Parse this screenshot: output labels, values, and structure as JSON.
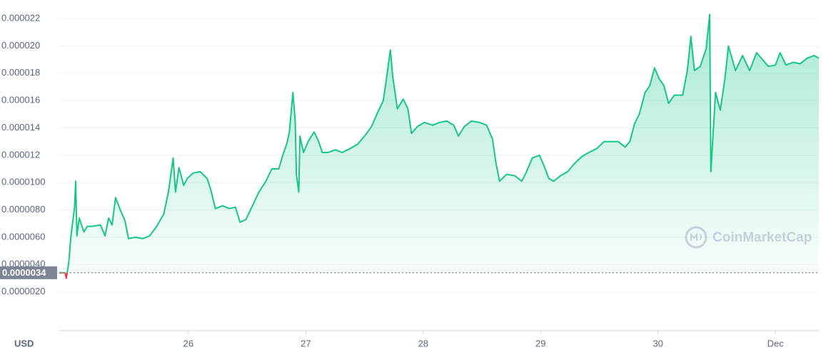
{
  "chart_data": {
    "type": "line",
    "currency": "USD",
    "watermark": "CoinMarketCap",
    "color": "#16c784",
    "down_color": "#ea3943",
    "baseline": {
      "value": 3.4e-06,
      "label": "0.0000034"
    },
    "xlim": [
      24.9,
      31.37
    ],
    "xticks": [
      26,
      27,
      28,
      29,
      30,
      {
        "value": 31,
        "label": "Dec"
      }
    ],
    "ylim": [
      0,
      2.31e-05
    ],
    "yticks": [
      {
        "value": 2e-06,
        "label": "0.0000020"
      },
      {
        "value": 4e-06,
        "label": "0.0000040"
      },
      {
        "value": 6e-06,
        "label": "0.0000060"
      },
      {
        "value": 8e-06,
        "label": "0.0000080"
      },
      {
        "value": 1e-05,
        "label": "0.0000100"
      },
      1.2e-05,
      1.4e-05,
      1.6e-05,
      1.8e-05,
      {
        "value": 2e-05,
        "label": "0.000020"
      },
      2.2e-05
    ],
    "grid": true,
    "x": [
      24.9,
      24.95,
      24.96,
      24.98,
      25.0,
      25.03,
      25.04,
      25.05,
      25.07,
      25.11,
      25.14,
      25.18,
      25.25,
      25.29,
      25.32,
      25.35,
      25.38,
      25.42,
      25.46,
      25.49,
      25.55,
      25.61,
      25.67,
      25.73,
      25.79,
      25.83,
      25.87,
      25.89,
      25.92,
      25.96,
      25.99,
      26.04,
      26.1,
      26.16,
      26.19,
      26.23,
      26.29,
      26.35,
      26.4,
      26.44,
      26.49,
      26.54,
      26.6,
      26.66,
      26.71,
      26.77,
      26.8,
      26.84,
      26.86,
      26.89,
      26.91,
      26.92,
      26.94,
      26.95,
      26.98,
      27.02,
      27.07,
      27.11,
      27.14,
      27.19,
      27.25,
      27.31,
      27.38,
      27.44,
      27.51,
      27.56,
      27.61,
      27.66,
      27.68,
      27.72,
      27.74,
      27.78,
      27.83,
      27.87,
      27.9,
      27.95,
      28.01,
      28.08,
      28.14,
      28.2,
      28.26,
      28.3,
      28.35,
      28.41,
      28.48,
      28.54,
      28.59,
      28.62,
      28.65,
      28.71,
      28.78,
      28.84,
      28.88,
      28.93,
      28.99,
      29.03,
      29.07,
      29.11,
      29.17,
      29.23,
      29.29,
      29.35,
      29.41,
      29.48,
      29.54,
      29.6,
      29.66,
      29.72,
      29.76,
      29.8,
      29.84,
      29.89,
      29.93,
      29.97,
      30.01,
      30.05,
      30.09,
      30.14,
      30.21,
      30.25,
      30.28,
      30.31,
      30.36,
      30.41,
      30.44,
      30.45,
      30.49,
      30.53,
      30.57,
      30.6,
      30.66,
      30.72,
      30.78,
      30.84,
      30.89,
      30.94,
      31.0,
      31.04,
      31.09,
      31.15,
      31.21,
      31.27,
      31.33,
      31.37
    ],
    "values": [
      3.4e-06,
      3.4e-06,
      3e-06,
      4.1e-06,
      6.1e-06,
      8.2e-06,
      1.01e-05,
      6.1e-06,
      7.4e-06,
      6.4e-06,
      6.8e-06,
      6.8e-06,
      6.9e-06,
      6.1e-06,
      7.4e-06,
      6.9e-06,
      8.9e-06,
      8e-06,
      7.2e-06,
      5.9e-06,
      6e-06,
      5.9e-06,
      6.1e-06,
      6.8e-06,
      7.7e-06,
      9.3e-06,
      1.18e-05,
      9.3e-06,
      1.11e-05,
      9.8e-06,
      1.03e-05,
      1.07e-05,
      1.08e-05,
      1.03e-05,
      9.5e-06,
      8.1e-06,
      8.3e-06,
      8.1e-06,
      8.2e-06,
      7.1e-06,
      7.3e-06,
      8.2e-06,
      9.3e-06,
      1.01e-05,
      1.1e-05,
      1.1e-05,
      1.19e-05,
      1.29e-05,
      1.37e-05,
      1.66e-05,
      1.45e-05,
      1.06e-05,
      9.3e-06,
      1.34e-05,
      1.22e-05,
      1.3e-05,
      1.37e-05,
      1.3e-05,
      1.22e-05,
      1.22e-05,
      1.24e-05,
      1.22e-05,
      1.25e-05,
      1.28e-05,
      1.35e-05,
      1.41e-05,
      1.51e-05,
      1.6e-05,
      1.72e-05,
      1.97e-05,
      1.78e-05,
      1.54e-05,
      1.61e-05,
      1.54e-05,
      1.36e-05,
      1.41e-05,
      1.44e-05,
      1.42e-05,
      1.44e-05,
      1.45e-05,
      1.42e-05,
      1.34e-05,
      1.41e-05,
      1.45e-05,
      1.44e-05,
      1.42e-05,
      1.32e-05,
      1.14e-05,
      1.01e-05,
      1.06e-05,
      1.05e-05,
      1.01e-05,
      1.08e-05,
      1.18e-05,
      1.2e-05,
      1.12e-05,
      1.03e-05,
      1.01e-05,
      1.05e-05,
      1.08e-05,
      1.14e-05,
      1.19e-05,
      1.22e-05,
      1.25e-05,
      1.3e-05,
      1.3e-05,
      1.3e-05,
      1.26e-05,
      1.3e-05,
      1.43e-05,
      1.5e-05,
      1.66e-05,
      1.71e-05,
      1.84e-05,
      1.76e-05,
      1.71e-05,
      1.58e-05,
      1.64e-05,
      1.64e-05,
      1.82e-05,
      2.07e-05,
      1.82e-05,
      1.85e-05,
      1.98e-05,
      2.23e-05,
      1.08e-05,
      1.66e-05,
      1.53e-05,
      1.76e-05,
      2e-05,
      1.82e-05,
      1.93e-05,
      1.82e-05,
      1.95e-05,
      1.9e-05,
      1.85e-05,
      1.86e-05,
      1.95e-05,
      1.86e-05,
      1.88e-05,
      1.87e-05,
      1.91e-05,
      1.93e-05,
      1.91e-05
    ]
  }
}
